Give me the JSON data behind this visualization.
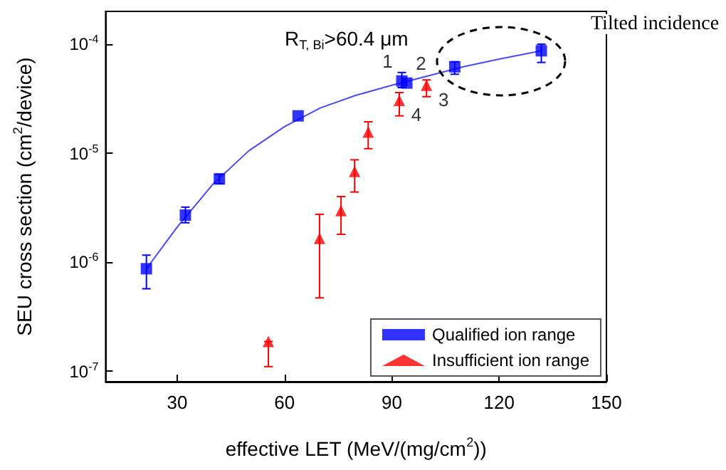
{
  "chart_data": {
    "type": "scatter",
    "xlabel": "effective LET (MeV/(mg/cm$^{2}$))",
    "ylabel": "SEU cross section (cm$^{2}$/device)",
    "xlim": [
      10,
      150
    ],
    "xticks": [
      30,
      60,
      90,
      120,
      150
    ],
    "ylim": [
      8e-08,
      0.0002
    ],
    "yticks": [
      {
        "value": 1e-07,
        "label": "10$^{-7}$"
      },
      {
        "value": 1e-06,
        "label": "10$^{-6}$"
      },
      {
        "value": 1e-05,
        "label": "10$^{-5}$"
      },
      {
        "value": 0.0001,
        "label": "10$^{-4}$"
      }
    ],
    "log": "y",
    "grid": false,
    "legend": "bottom right",
    "series": [
      {
        "name": "Qualified ion range",
        "color": "#0000ff",
        "marker": "square",
        "x": [
          21.4,
          32.3,
          41.8,
          63.8,
          92.8,
          94.2,
          107.6,
          131.8
        ],
        "values": [
          8.7e-07,
          2.7e-06,
          5.8e-06,
          2.2e-05,
          4.6e-05,
          4.4e-05,
          6.2e-05,
          8.7e-05
        ],
        "errors": [
          [
            5.7e-07,
            1.16e-06
          ],
          [
            2.3e-06,
            3.2e-06
          ],
          [
            5.25e-06,
            6.4e-06
          ],
          null,
          [
            4e-05,
            5.5e-05
          ],
          null,
          [
            5.3e-05,
            6.9e-05
          ],
          [
            6.8e-05,
            0.0001
          ]
        ]
      },
      {
        "name": "Insufficient ion range",
        "color": "#ff0000",
        "marker": "triangle",
        "x": [
          55.5,
          69.8,
          75.8,
          79.6,
          83.4,
          92.1,
          99.7
        ],
        "values": [
          1.87e-07,
          1.65e-06,
          2.97e-06,
          6.8e-06,
          1.56e-05,
          3.05e-05,
          4.2e-05
        ],
        "errors": [
          [
            1.1e-07,
            1.87e-07
          ],
          [
            4.7e-07,
            2.75e-06
          ],
          [
            1.8e-06,
            4e-06
          ],
          [
            4.4e-06,
            8.7e-06
          ],
          [
            1.1e-05,
            1.94e-05
          ],
          [
            2.2e-05,
            3.6e-05
          ],
          [
            3.3e-05,
            4.7e-05
          ]
        ]
      },
      {
        "type": "line",
        "color": "#4b4bf0",
        "marker": "none",
        "x": [
          21.4,
          30,
          40,
          50,
          60,
          70,
          80,
          90,
          100,
          110,
          120,
          131.8
        ],
        "values": [
          8.7e-07,
          2.1e-06,
          5.2e-06,
          1.05e-05,
          1.75e-05,
          2.6e-05,
          3.4e-05,
          4.2e-05,
          5.1e-05,
          6.2e-05,
          7.3e-05,
          8.7e-05
        ]
      }
    ],
    "annotations": [
      "R$_{T, Bi}$>60.4 μm",
      "Tilted incidence",
      {
        "text": "1",
        "x": 92.8,
        "y": 4.6e-05
      },
      {
        "text": "2",
        "x": 94.2,
        "y": 4.4e-05
      },
      {
        "text": "3",
        "x": 99.7,
        "y": 4.2e-05
      },
      {
        "text": "4",
        "x": 92.1,
        "y": 3.05e-05
      }
    ]
  }
}
